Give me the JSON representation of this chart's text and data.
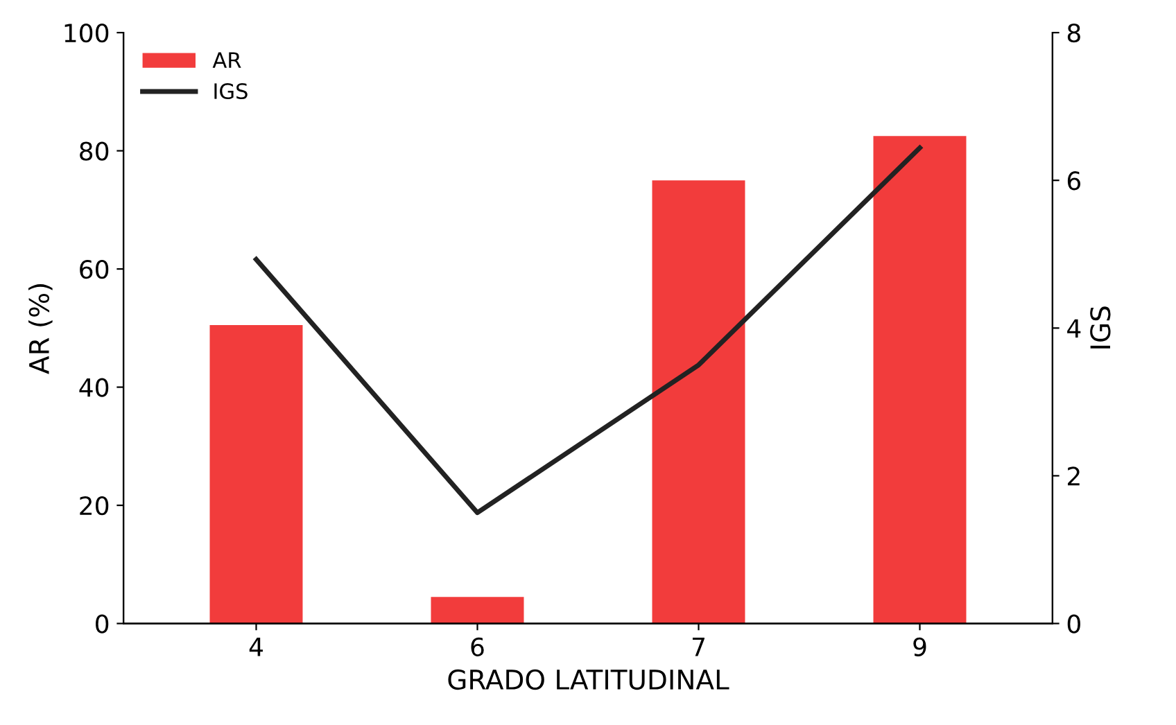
{
  "chart_data": {
    "type": "bar",
    "xlabel": "GRADO LATITUDINAL",
    "ylabel": "AR (%)",
    "y2label": "IGS",
    "categories": [
      "4",
      "6",
      "7",
      "9"
    ],
    "series": [
      {
        "name": "AR",
        "color": "#f23c3c",
        "values": [
          50.5,
          4.5,
          75,
          82.5
        ]
      },
      {
        "name": "IGS",
        "type": "line",
        "axis": "y2",
        "color": "#222222",
        "values": [
          4.93,
          1.5,
          3.5,
          6.44
        ],
        "marker": "none",
        "line_style": "solid"
      }
    ],
    "ylim": [
      0,
      100
    ],
    "yticks": [
      0,
      20,
      40,
      60,
      80,
      100
    ],
    "y2lim": [
      0,
      8
    ],
    "y2ticks": [
      0,
      2,
      4,
      6,
      8
    ],
    "grid": false,
    "legend": "top left"
  }
}
